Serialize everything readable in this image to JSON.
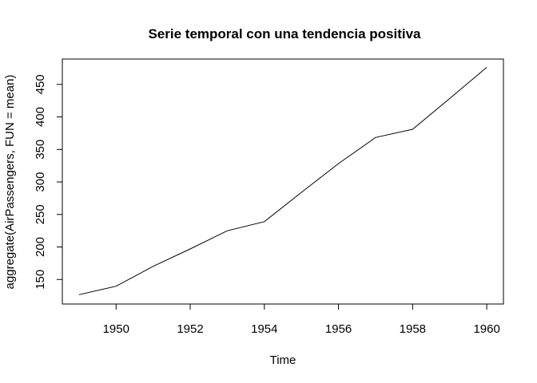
{
  "chart_data": {
    "type": "line",
    "title": "Serie temporal con una tendencia positiva",
    "xlabel": "Time",
    "ylabel": "aggregate(AirPassengers, FUN = mean)",
    "xlim": [
      1948.55,
      1960.45
    ],
    "ylim": [
      112.3,
      489.0
    ],
    "x_ticks": [
      1950,
      1952,
      1954,
      1956,
      1958,
      1960
    ],
    "y_ticks": [
      150,
      200,
      250,
      300,
      350,
      400,
      450
    ],
    "grid": false,
    "legend": "none",
    "line_color": "#000000",
    "series": [
      {
        "x": [
          1949,
          1950,
          1951,
          1952,
          1953,
          1954,
          1955,
          1956,
          1957,
          1958,
          1959,
          1960
        ],
        "values": [
          126.7,
          139.7,
          170.2,
          197.0,
          225.0,
          238.9,
          284.0,
          328.3,
          368.4,
          381.0,
          428.3,
          476.2
        ]
      }
    ]
  }
}
